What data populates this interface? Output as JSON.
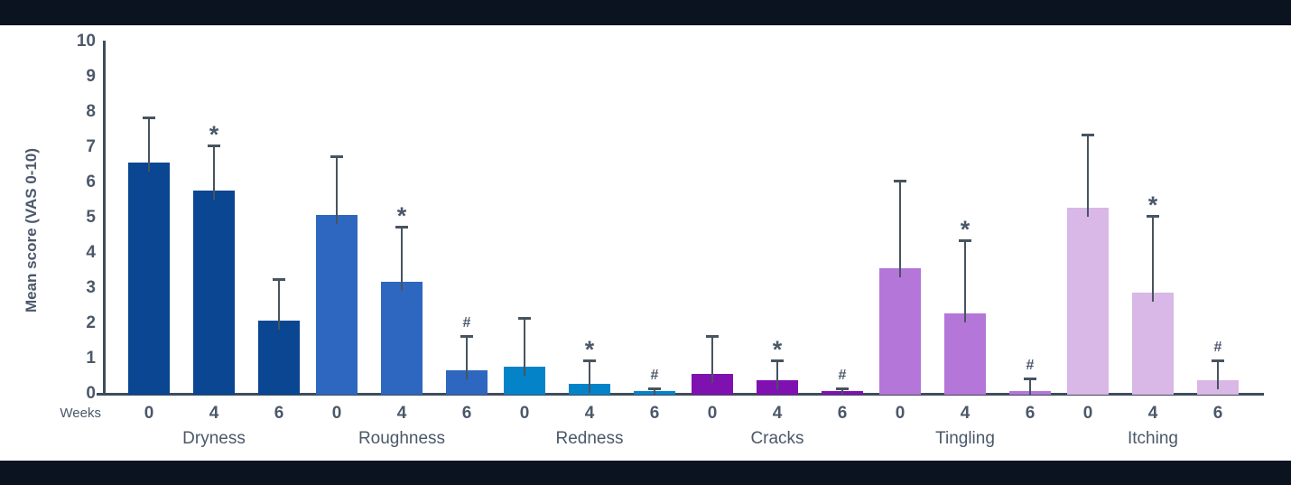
{
  "page": {
    "background": "#ffffff",
    "top_strip_color": "#0b1220",
    "bottom_strip_color": "#0b1220"
  },
  "chart_data": {
    "type": "bar",
    "title": "",
    "ylabel": "Mean score (VAS 0-10)",
    "weeks_caption": "Weeks",
    "ylim": [
      0,
      10
    ],
    "yticks": [
      "0",
      "1",
      "2",
      "3",
      "4",
      "5",
      "6",
      "7",
      "8",
      "9",
      "10"
    ],
    "grid": false,
    "legend_position": "none",
    "axis_color": "#3f4c5b",
    "error_bar_color": "#47545f",
    "text_color": "#4b586a",
    "week_labels": [
      "0",
      "4",
      "6"
    ],
    "groups": [
      {
        "name": "Dryness",
        "color": "#0a4691",
        "values": [
          6.6,
          5.8,
          2.1
        ],
        "error_tops": [
          7.9,
          7.1,
          3.3
        ],
        "annotations": [
          "",
          "*",
          ""
        ]
      },
      {
        "name": "Roughness",
        "color": "#2e67bf",
        "values": [
          5.1,
          3.2,
          0.7
        ],
        "error_tops": [
          6.8,
          4.8,
          1.7
        ],
        "annotations": [
          "",
          "*",
          "#"
        ]
      },
      {
        "name": "Redness",
        "color": "#0583c9",
        "values": [
          0.8,
          0.3,
          0.1
        ],
        "error_tops": [
          2.2,
          1.0,
          0.2
        ],
        "annotations": [
          "",
          "*",
          "#"
        ]
      },
      {
        "name": "Cracks",
        "color": "#7f11b1",
        "values": [
          0.6,
          0.4,
          0.1
        ],
        "error_tops": [
          1.7,
          1.0,
          0.2
        ],
        "annotations": [
          "",
          "*",
          "#"
        ]
      },
      {
        "name": "Tingling",
        "color": "#b476d8",
        "values": [
          3.6,
          2.3,
          0.1
        ],
        "error_tops": [
          6.1,
          4.4,
          0.5
        ],
        "annotations": [
          "",
          "*",
          "#"
        ]
      },
      {
        "name": "Itching",
        "color": "#d9b7e6",
        "values": [
          5.3,
          2.9,
          0.4
        ],
        "error_tops": [
          7.4,
          5.1,
          1.0
        ],
        "annotations": [
          "",
          "*",
          "#"
        ]
      }
    ]
  }
}
